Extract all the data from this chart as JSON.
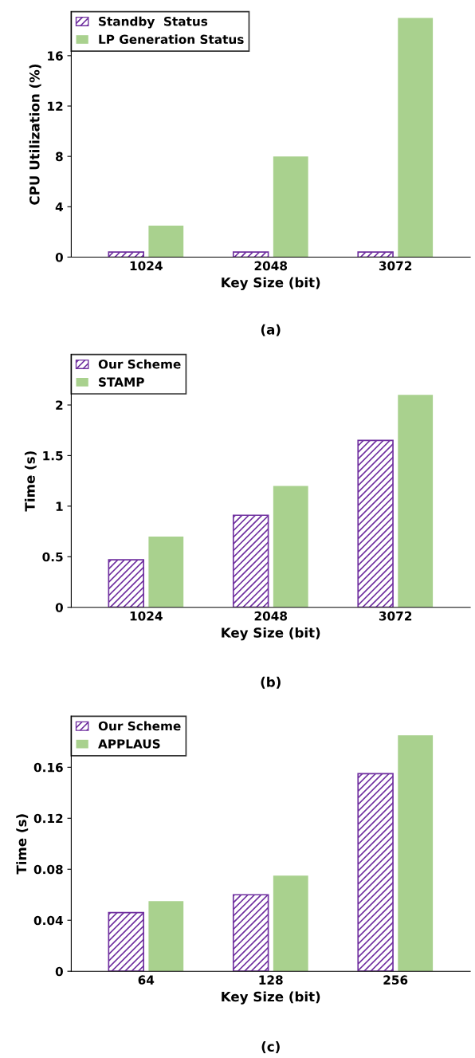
{
  "chart_data": [
    {
      "type": "bar",
      "categories": [
        "1024",
        "2048",
        "3072"
      ],
      "xlabel": "Key Size (bit)",
      "ylabel": "CPU Utilization (%)",
      "ylim": [
        0,
        19.5
      ],
      "yticks": [
        0,
        4,
        8,
        12,
        16
      ],
      "legend": "top left",
      "annotations": [
        "(a)"
      ],
      "series": [
        {
          "name": "Standby  Status",
          "color": "#7030a0",
          "values": [
            0.4,
            0.4,
            0.4
          ]
        },
        {
          "name": "LP Generation Status",
          "color": "#a9d18e",
          "values": [
            2.5,
            8.0,
            19.0
          ]
        }
      ]
    },
    {
      "type": "bar",
      "categories": [
        "1024",
        "2048",
        "3072"
      ],
      "xlabel": "Key Size (bit)",
      "ylabel": "Time (s)",
      "ylim": [
        0,
        2.5
      ],
      "yticks": [
        0,
        0.5,
        1,
        1.5,
        2
      ],
      "legend": "top left",
      "annotations": [
        "(b)"
      ],
      "series": [
        {
          "name": "Our Scheme",
          "color": "#7030a0",
          "values": [
            0.47,
            0.91,
            1.65
          ]
        },
        {
          "name": "STAMP",
          "color": "#a9d18e",
          "values": [
            0.7,
            1.2,
            2.1
          ]
        }
      ]
    },
    {
      "type": "bar",
      "categories": [
        "64",
        "128",
        "256"
      ],
      "xlabel": "Key Size (bit)",
      "ylabel": "Time (s)",
      "ylim": [
        0,
        0.2
      ],
      "yticks": [
        0,
        0.04,
        0.08,
        0.12,
        0.16
      ],
      "legend": "top left",
      "annotations": [
        "(c)"
      ],
      "series": [
        {
          "name": "Our Scheme",
          "color": "#7030a0",
          "values": [
            0.046,
            0.06,
            0.155
          ]
        },
        {
          "name": "APPLAUS",
          "color": "#a9d18e",
          "values": [
            0.055,
            0.075,
            0.185
          ]
        }
      ]
    }
  ]
}
